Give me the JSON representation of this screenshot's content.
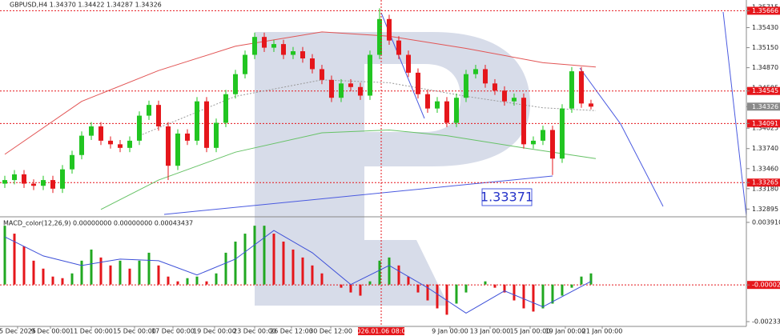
{
  "chart_data": [
    {
      "type": "candlestick",
      "title": "GBPUSD,H4  1.34370 1.34422 1.34287 1.34326",
      "open": [
        1.3325,
        1.333,
        1.3338,
        1.3325,
        1.3322,
        1.333,
        1.3318,
        1.3345,
        1.3365,
        1.3392,
        1.3405,
        1.3385,
        1.338,
        1.3375,
        1.3385,
        1.342,
        1.3435,
        1.3405,
        1.335,
        1.3395,
        1.3385,
        1.344,
        1.3375,
        1.341,
        1.345,
        1.3478,
        1.3505,
        1.353,
        1.3515,
        1.352,
        1.3505,
        1.351,
        1.35,
        1.3485,
        1.347,
        1.3445,
        1.3465,
        1.346,
        1.3448,
        1.3505,
        1.3555,
        1.3525,
        1.3505,
        1.348,
        1.345,
        1.343,
        1.344,
        1.341,
        1.3445,
        1.3478,
        1.3485,
        1.3465,
        1.3455,
        1.344,
        1.3445,
        1.338,
        1.3385,
        1.34,
        1.336,
        1.343,
        1.3482,
        1.3437
      ],
      "high": [
        1.3336,
        1.3344,
        1.3344,
        1.3331,
        1.3336,
        1.3336,
        1.3351,
        1.3371,
        1.3398,
        1.3411,
        1.3411,
        1.3391,
        1.3386,
        1.3391,
        1.3426,
        1.3441,
        1.3441,
        1.3411,
        1.3401,
        1.3401,
        1.3446,
        1.3446,
        1.3416,
        1.3456,
        1.3484,
        1.3511,
        1.3536,
        1.3536,
        1.3526,
        1.3526,
        1.3516,
        1.3516,
        1.3506,
        1.3491,
        1.3476,
        1.3471,
        1.3471,
        1.3466,
        1.3511,
        1.357,
        1.3561,
        1.3531,
        1.3511,
        1.3486,
        1.3456,
        1.3446,
        1.3446,
        1.3451,
        1.3484,
        1.3491,
        1.3491,
        1.3471,
        1.3461,
        1.3451,
        1.3451,
        1.3391,
        1.3406,
        1.3406,
        1.3436,
        1.3488,
        1.3488,
        1.34422
      ],
      "low": [
        1.3319,
        1.3324,
        1.3319,
        1.3316,
        1.3316,
        1.3312,
        1.3312,
        1.3339,
        1.3359,
        1.3386,
        1.3379,
        1.3374,
        1.3369,
        1.3369,
        1.3379,
        1.3414,
        1.3399,
        1.333,
        1.3344,
        1.3379,
        1.3379,
        1.3369,
        1.3369,
        1.3404,
        1.3444,
        1.3472,
        1.3499,
        1.3509,
        1.3509,
        1.3499,
        1.3499,
        1.3494,
        1.3479,
        1.3464,
        1.3439,
        1.3439,
        1.3454,
        1.3442,
        1.3442,
        1.3499,
        1.3519,
        1.3499,
        1.3474,
        1.3444,
        1.3424,
        1.3424,
        1.3404,
        1.3404,
        1.3439,
        1.3472,
        1.3459,
        1.3449,
        1.3434,
        1.3434,
        1.3374,
        1.3374,
        1.3379,
        1.33371,
        1.3354,
        1.3424,
        1.3431,
        1.34287
      ],
      "close": [
        1.333,
        1.3338,
        1.3325,
        1.3322,
        1.333,
        1.3318,
        1.3345,
        1.3365,
        1.3392,
        1.3405,
        1.3385,
        1.338,
        1.3375,
        1.3385,
        1.342,
        1.3435,
        1.3405,
        1.335,
        1.3395,
        1.3385,
        1.344,
        1.3375,
        1.341,
        1.345,
        1.3478,
        1.3505,
        1.353,
        1.3515,
        1.352,
        1.3505,
        1.351,
        1.35,
        1.3485,
        1.347,
        1.3445,
        1.3465,
        1.346,
        1.3448,
        1.3505,
        1.3555,
        1.3525,
        1.3505,
        1.348,
        1.345,
        1.343,
        1.344,
        1.341,
        1.3445,
        1.3478,
        1.3485,
        1.3465,
        1.3455,
        1.344,
        1.3445,
        1.338,
        1.3385,
        1.34,
        1.336,
        1.343,
        1.3482,
        1.3437,
        1.34326
      ],
      "up_color": "#21c521",
      "down_color": "#e5161b",
      "lines": [
        {
          "color": "#e25555",
          "dash": false,
          "x": [
            0,
            8,
            16,
            24,
            33,
            40,
            48,
            56,
            61.5
          ],
          "values": [
            1.3366,
            1.344,
            1.3483,
            1.3517,
            1.3537,
            1.3531,
            1.3514,
            1.3494,
            1.3488
          ]
        },
        {
          "color": "#66c266",
          "dash": false,
          "x": [
            10,
            16,
            24,
            33,
            40,
            46,
            54,
            61.5
          ],
          "values": [
            1.3289,
            1.333,
            1.3369,
            1.3396,
            1.34,
            1.3392,
            1.3375,
            1.336
          ]
        },
        {
          "color": "#999999",
          "dash": true,
          "x": [
            14,
            24,
            33,
            40,
            48,
            56,
            61.5
          ],
          "values": [
            1.3392,
            1.3447,
            1.347,
            1.3466,
            1.3447,
            1.3431,
            1.3427
          ]
        }
      ],
      "levels": [
        1.35666,
        1.34545,
        1.34091,
        1.33265
      ],
      "level_color": "#e5161b",
      "current_price": 1.34326,
      "annotation": 1.33371,
      "crosshair": {
        "value": 39.17,
        "label": "2026.01.06 08:00"
      },
      "ylim": [
        1.32798,
        1.35816
      ],
      "yticks": [
        1.35715,
        {
          "value": 1.3543,
          "label": "1.35430"
        },
        {
          "value": 1.3515,
          "label": "1.35150"
        },
        {
          "value": 1.3487,
          "label": "1.34870"
        },
        1.34585,
        1.34025,
        {
          "value": 1.3374,
          "label": "1.33740"
        },
        {
          "value": 1.3346,
          "label": "1.33460"
        },
        {
          "value": 1.3318,
          "label": "1.33180"
        },
        1.32895
      ],
      "xlim": [
        -0.5,
        77.17
      ],
      "xticks": [
        {
          "value": 1.33,
          "label": "5 Dec 2025"
        },
        {
          "value": 4.75,
          "label": "9 Dec 00:00"
        },
        {
          "value": 9,
          "label": "11 Dec 00:00"
        },
        {
          "value": 13.5,
          "label": "15 Dec 00:00"
        },
        {
          "value": 17.5,
          "label": "17 Dec 00:00"
        },
        {
          "value": 21.83,
          "label": "19 Dec 00:00"
        },
        {
          "value": 26,
          "label": "23 Dec 00:00"
        },
        {
          "value": 29.83,
          "label": "26 Dec 12:00"
        },
        {
          "value": 33.92,
          "label": "30 Dec 12:00"
        },
        {
          "value": 46.33,
          "label": "9 Jan 00:00"
        },
        {
          "value": 50.5,
          "label": "13 Jan 00:00"
        },
        {
          "value": 54.67,
          "label": "15 Jan 00:00"
        },
        {
          "value": 58.33,
          "label": "19 Jan 00:00"
        },
        {
          "value": 62.17,
          "label": "21 Jan 00:00"
        }
      ]
    },
    {
      "type": "macd",
      "title": "MACD_color(12,26,9) 0.00000000 0.00000000 0.00043437",
      "values": [
        0.0037,
        0.0032,
        0.0024,
        0.0015,
        0.001,
        0.0005,
        0.0004,
        0.0007,
        0.0015,
        0.0022,
        0.0017,
        0.0012,
        0.0015,
        0.001,
        0.0015,
        0.002,
        0.0012,
        0.0005,
        0.0002,
        0.0004,
        0.0005,
        0.0002,
        0.0007,
        0.002,
        0.0027,
        0.0032,
        0.0037,
        0.0037,
        0.0032,
        0.0027,
        0.0022,
        0.0017,
        0.0012,
        0.0007,
        0,
        -0.0002,
        -0.0005,
        -0.0007,
        0.0002,
        0.0015,
        0.0017,
        0.0012,
        0.0005,
        -0.0005,
        -0.001,
        -0.0015,
        -0.0019,
        -0.0012,
        -0.0005,
        0,
        0.0002,
        -0.0002,
        -0.0005,
        -0.001,
        -0.0015,
        -0.0017,
        -0.0015,
        -0.0012,
        -0.0007,
        -0.0002,
        0.0005,
        0.0007
      ],
      "up_color": "#21a821",
      "down_color": "#e5161b",
      "signal": {
        "color": "#3c4fd8",
        "x": [
          0,
          4,
          8,
          12,
          16,
          20,
          24,
          28,
          32,
          36,
          40,
          44,
          48,
          52,
          56,
          61
        ],
        "values": [
          0.003,
          0.0018,
          0.0012,
          0.0016,
          0.0015,
          0.0006,
          0.0016,
          0.0034,
          0.002,
          0,
          0.0012,
          -0.0002,
          -0.0018,
          -0.0004,
          -0.0014,
          0.0002
        ]
      },
      "level": -2.6e-05,
      "level_color": "#e5161b",
      "ylim": [
        -0.0025835,
        0.0042098
      ],
      "yticks": [
        0.0039101,
        -0.0023337
      ]
    }
  ]
}
